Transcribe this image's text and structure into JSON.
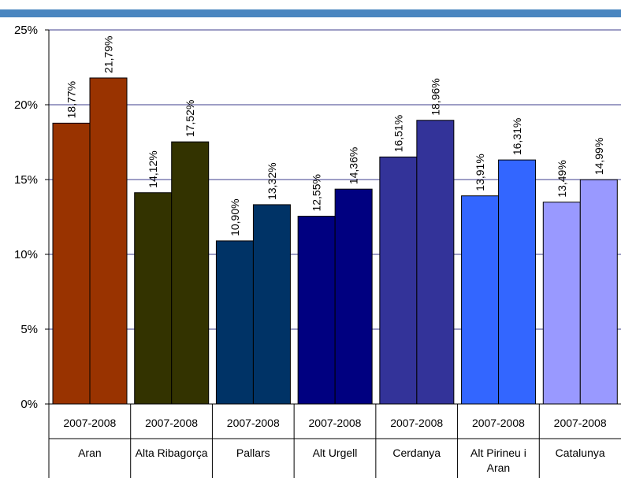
{
  "chart_data": {
    "type": "bar",
    "title": "",
    "xlabel": "",
    "ylabel": "",
    "ylim": [
      0,
      25
    ],
    "yticks": [
      "0%",
      "5%",
      "10%",
      "15%",
      "20%",
      "25%"
    ],
    "grid": true,
    "legend": "none",
    "header_color": "#4a86c0",
    "categories": [
      {
        "name": "Aran",
        "period": "2007-2008",
        "color": "#993300",
        "values": [
          18.77,
          21.79
        ],
        "labels": [
          "18,77%",
          "21,79%"
        ]
      },
      {
        "name": "Alta Ribagorça",
        "period": "2007-2008",
        "color": "#333300",
        "values": [
          14.12,
          17.52
        ],
        "labels": [
          "14,12%",
          "17,52%"
        ]
      },
      {
        "name": "Pallars",
        "period": "2007-2008",
        "color": "#003366",
        "values": [
          10.9,
          13.32
        ],
        "labels": [
          "10,90%",
          "13,32%"
        ]
      },
      {
        "name": "Alt Urgell",
        "period": "2007-2008",
        "color": "#000080",
        "values": [
          12.55,
          14.36
        ],
        "labels": [
          "12,55%",
          "14,36%"
        ]
      },
      {
        "name": "Cerdanya",
        "period": "2007-2008",
        "color": "#333399",
        "values": [
          16.51,
          18.96
        ],
        "labels": [
          "16,51%",
          "18,96%"
        ]
      },
      {
        "name": "Alt Pirineu i Aran",
        "period": "2007-2008",
        "color": "#3366ff",
        "values": [
          13.91,
          16.31
        ],
        "labels": [
          "13,91%",
          "16,31%"
        ]
      },
      {
        "name": "Catalunya",
        "period": "2007-2008",
        "color": "#9999ff",
        "values": [
          13.49,
          14.99
        ],
        "labels": [
          "13,49%",
          "14,99%"
        ]
      }
    ]
  }
}
